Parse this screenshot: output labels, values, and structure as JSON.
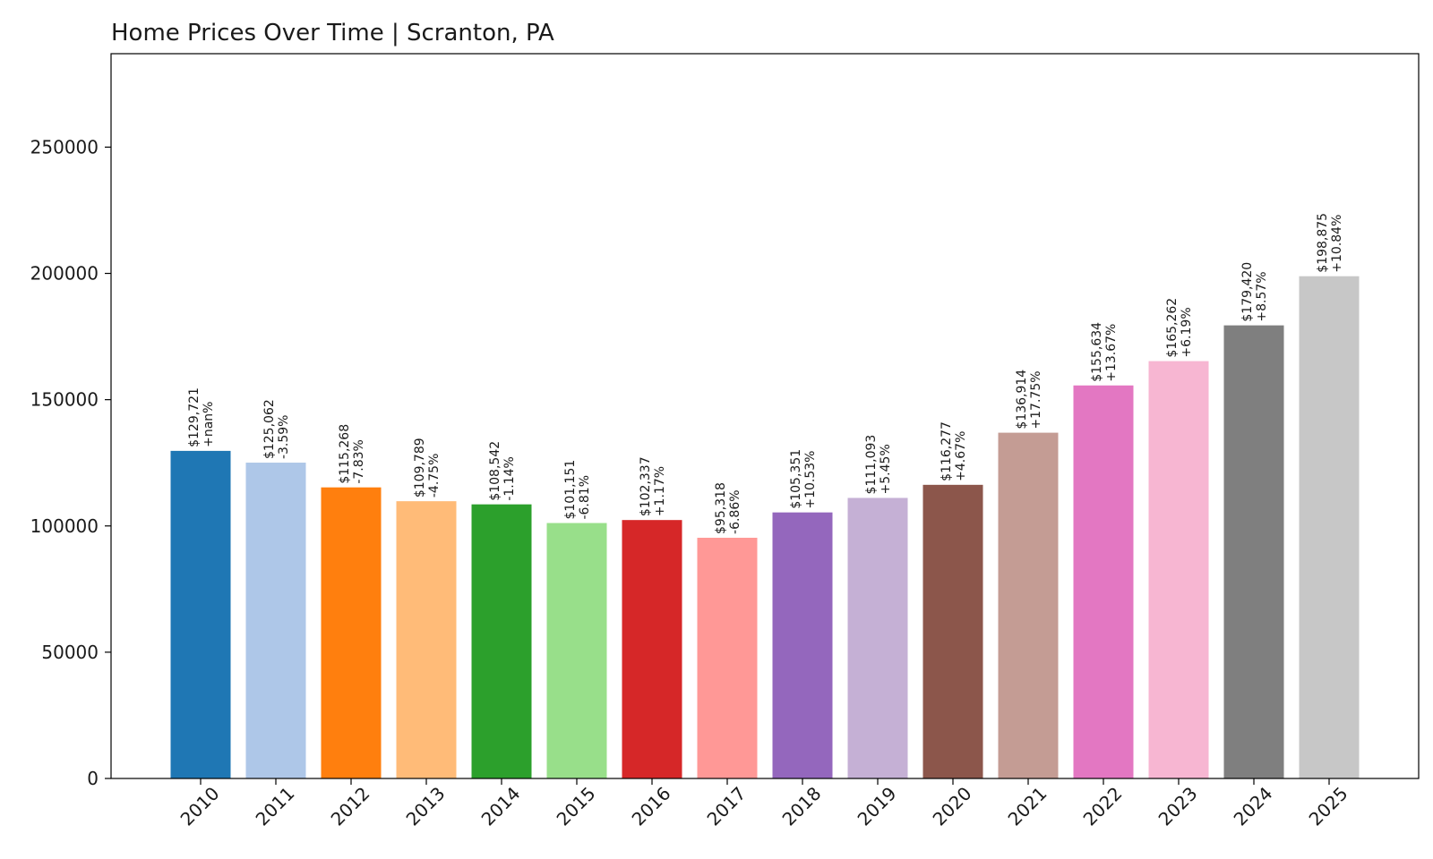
{
  "chart_data": {
    "type": "bar",
    "title": "Home Prices Over Time | Scranton, PA",
    "xlabel": "",
    "ylabel": "",
    "ylim": [
      0,
      287000
    ],
    "yticks": [
      0,
      50000,
      100000,
      150000,
      200000,
      250000
    ],
    "ytick_labels": [
      "0",
      "50000",
      "100000",
      "150000",
      "200000",
      "250000"
    ],
    "grid": false,
    "legend": "none",
    "categories": [
      "2010",
      "2011",
      "2012",
      "2013",
      "2014",
      "2015",
      "2016",
      "2017",
      "2018",
      "2019",
      "2020",
      "2021",
      "2022",
      "2023",
      "2024",
      "2025"
    ],
    "values": [
      129721,
      125062,
      115268,
      109789,
      108542,
      101151,
      102337,
      95318,
      105351,
      111093,
      116277,
      136914,
      155634,
      165262,
      179420,
      198875
    ],
    "value_labels": [
      "$129,721",
      "$125,062",
      "$115,268",
      "$109,789",
      "$108,542",
      "$101,151",
      "$102,337",
      "$95,318",
      "$105,351",
      "$111,093",
      "$116,277",
      "$136,914",
      "$155,634",
      "$165,262",
      "$179,420",
      "$198,875"
    ],
    "change_labels": [
      "+nan%",
      "-3.59%",
      "-7.83%",
      "-4.75%",
      "-1.14%",
      "-6.81%",
      "+1.17%",
      "-6.86%",
      "+10.53%",
      "+5.45%",
      "+4.67%",
      "+17.75%",
      "+13.67%",
      "+6.19%",
      "+8.57%",
      "+10.84%"
    ],
    "colors": [
      "#1f77b4",
      "#aec7e8",
      "#ff7f0e",
      "#ffbb78",
      "#2ca02c",
      "#98df8a",
      "#d62728",
      "#ff9896",
      "#9467bd",
      "#c5b0d5",
      "#8c564b",
      "#c49c94",
      "#e377c2",
      "#f7b6d2",
      "#7f7f7f",
      "#c7c7c7"
    ]
  }
}
